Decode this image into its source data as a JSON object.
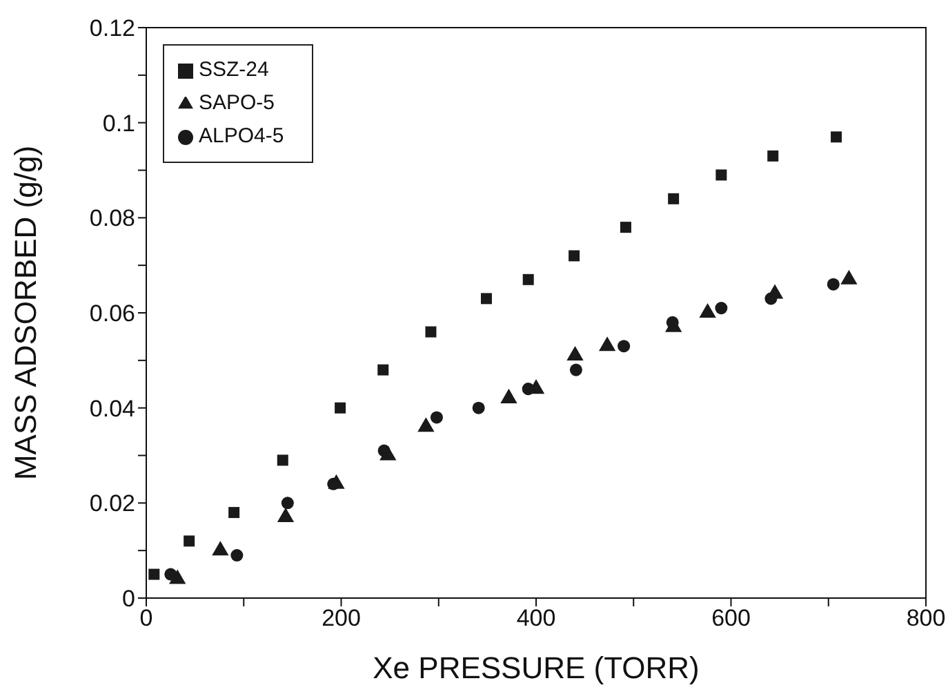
{
  "chart_data": {
    "type": "scatter",
    "xlabel": "Xe PRESSURE (TORR)",
    "ylabel": "MASS ADSORBED (g/g)",
    "xlim": [
      0,
      800
    ],
    "ylim": [
      0,
      0.12
    ],
    "xticks": [
      0,
      {
        "value": 100,
        "label": null
      },
      200,
      {
        "value": 300,
        "label": null
      },
      400,
      {
        "value": 500,
        "label": null
      },
      600,
      {
        "value": 700,
        "label": null
      },
      800
    ],
    "yticks": [
      0,
      {
        "value": 0.01,
        "label": null
      },
      0.02,
      {
        "value": 0.03,
        "label": null
      },
      0.04,
      {
        "value": 0.05,
        "label": null
      },
      0.06,
      {
        "value": 0.07,
        "label": null
      },
      0.08,
      {
        "value": 0.09,
        "label": null
      },
      0.1,
      {
        "value": 0.11,
        "label": null
      },
      0.12
    ],
    "grid": false,
    "legend": "top left",
    "series": [
      {
        "name": "SSZ-24",
        "color": "#1a1a1a",
        "marker": "square",
        "x": [
          8,
          44,
          90,
          140,
          199,
          243,
          292,
          349,
          392,
          439,
          492,
          541,
          590,
          643,
          708
        ],
        "values": [
          0.005,
          0.012,
          0.018,
          0.029,
          0.04,
          0.048,
          0.056,
          0.063,
          0.067,
          0.072,
          0.078,
          0.084,
          0.089,
          0.093,
          0.097
        ]
      },
      {
        "name": "SAPO-5",
        "color": "#1a1a1a",
        "marker": "triangle",
        "x": [
          32,
          76,
          143,
          195,
          248,
          287,
          372,
          400,
          440,
          473,
          541,
          576,
          645,
          721
        ],
        "values": [
          0.004,
          0.01,
          0.017,
          0.024,
          0.03,
          0.036,
          0.042,
          0.044,
          0.051,
          0.053,
          0.057,
          0.06,
          0.064,
          0.067
        ]
      },
      {
        "name": "ALPO4-5",
        "color": "#1a1a1a",
        "marker": "circle",
        "x": [
          25,
          93,
          145,
          192,
          244,
          298,
          341,
          392,
          441,
          490,
          540,
          590,
          641,
          705
        ],
        "values": [
          0.005,
          0.009,
          0.02,
          0.024,
          0.031,
          0.038,
          0.04,
          0.044,
          0.048,
          0.053,
          0.058,
          0.061,
          0.063,
          0.066
        ]
      }
    ]
  }
}
